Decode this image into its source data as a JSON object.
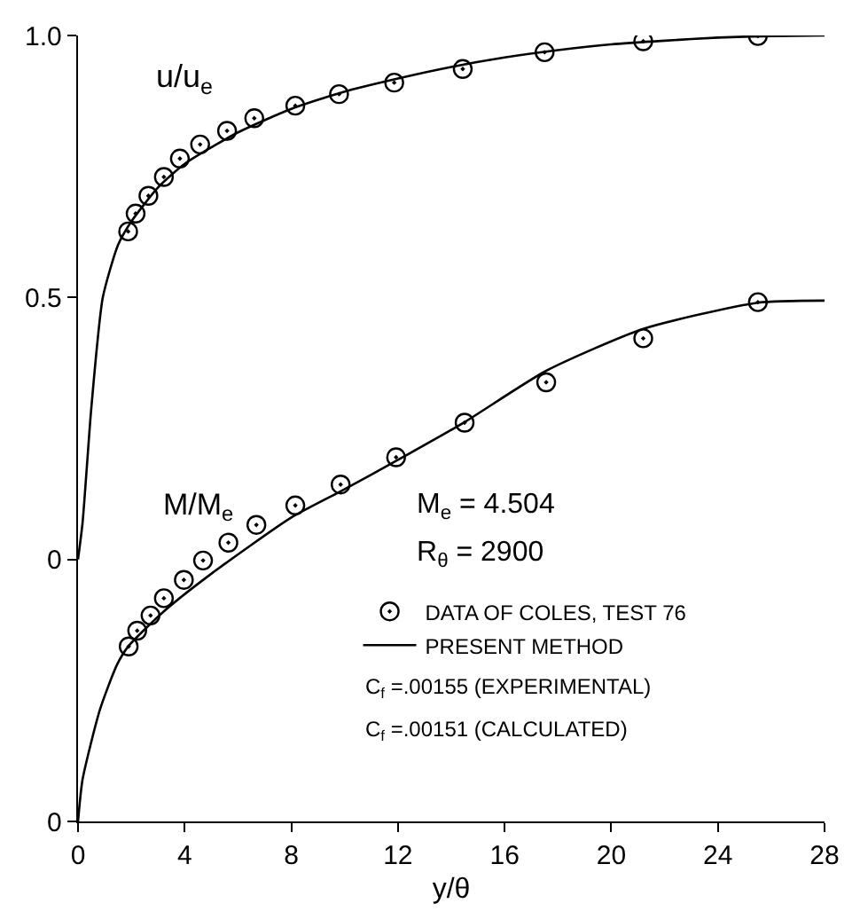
{
  "chart_data": {
    "type": "scatter",
    "xlabel": "y/θ",
    "xlim": [
      0,
      28
    ],
    "xticks": [
      0,
      4,
      8,
      12,
      16,
      20,
      24,
      28
    ],
    "ylim": [
      -0.5,
      1.0
    ],
    "yticks": [
      {
        "value": -0.5,
        "label": "0"
      },
      0,
      0.5,
      {
        "value": 1.0,
        "label": "1.0"
      }
    ],
    "legend": "right",
    "series": [
      {
        "name": "DATA OF COLES, TEST 76",
        "marker": "circle",
        "color": "#000000",
        "x": [
          1.88,
          2.16,
          2.64,
          3.22,
          3.82,
          4.58,
          5.59,
          6.61,
          8.15,
          9.79,
          11.86,
          14.43,
          17.5,
          21.2,
          25.5
        ],
        "values": [
          0.626,
          0.66,
          0.694,
          0.73,
          0.765,
          0.792,
          0.818,
          0.842,
          0.866,
          0.888,
          0.91,
          0.936,
          0.968,
          0.989,
          0.999
        ]
      },
      {
        "name": "PRESENT METHOD",
        "type": "line",
        "color": "#000000",
        "x": [
          0,
          0.17,
          0.5,
          0.93,
          1.5,
          2,
          3,
          4,
          6,
          8,
          10,
          12,
          14,
          16,
          18,
          20,
          22,
          24,
          26,
          28
        ],
        "values": [
          0,
          0.07,
          0.29,
          0.5,
          0.6,
          0.645,
          0.71,
          0.755,
          0.815,
          0.86,
          0.893,
          0.918,
          0.94,
          0.958,
          0.972,
          0.983,
          0.99,
          0.996,
          0.999,
          1.0
        ]
      },
      {
        "marker": "circle",
        "color": "#000000",
        "x": [
          1.9,
          2.22,
          2.72,
          3.22,
          3.97,
          4.69,
          5.64,
          6.69,
          8.15,
          9.85,
          11.93,
          14.5,
          17.56,
          21.2,
          25.5
        ],
        "values": [
          -0.166,
          -0.136,
          -0.107,
          -0.074,
          -0.039,
          -0.002,
          0.032,
          0.066,
          0.103,
          0.143,
          0.195,
          0.261,
          0.338,
          0.422,
          0.491
        ]
      },
      {
        "type": "line",
        "color": "#000000",
        "x": [
          0,
          0.17,
          0.82,
          1.47,
          1.9,
          3.2,
          4.93,
          8,
          9.85,
          12,
          14.43,
          17.56,
          21.2,
          25.5,
          28
        ],
        "values": [
          -0.5,
          -0.42,
          -0.287,
          -0.2,
          -0.165,
          -0.1,
          -0.03,
          0.08,
          0.13,
          0.19,
          0.26,
          0.36,
          0.44,
          0.49,
          0.494
        ]
      }
    ],
    "annotations": [
      "u/u$_{e}$",
      "M/M$_{e}$",
      "M$_{e}$ = 4.504",
      "R$_{θ}$ = 2900",
      "C$_{f}$ =.00155 (EXPERIMENTAL)",
      "C$_{f}$ =.00151 (CALCULATED)"
    ]
  }
}
